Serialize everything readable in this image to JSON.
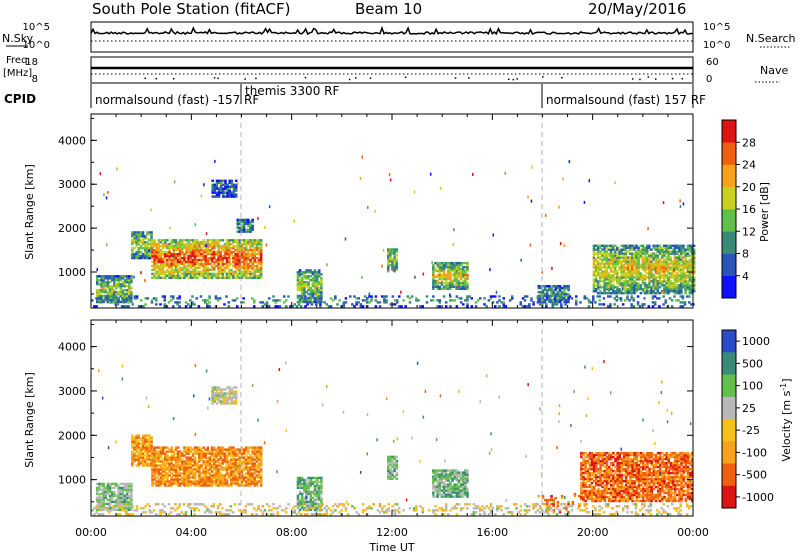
{
  "header": {
    "station": "South Pole Station (fitACF)",
    "beam": "Beam 10",
    "date": "20/May/2016"
  },
  "strip_nsky": {
    "left_label": "N.Sky",
    "right_label": "N.Search",
    "left_ticks": [
      "10^5",
      "10^0"
    ],
    "right_ticks": [
      "10^5",
      "10^0"
    ]
  },
  "strip_freq": {
    "left_label_line1": "Freq.",
    "left_label_line2": "[MHz]",
    "right_label": "Nave",
    "left_ticks": [
      "18",
      "8"
    ],
    "right_ticks": [
      "60",
      "0"
    ]
  },
  "cpid": {
    "label": "CPID",
    "segments": [
      {
        "text": "normalsound (fast) -157 RF",
        "start_h": 0
      },
      {
        "text": "themis 3300 RF",
        "start_h": 6
      },
      {
        "text": "normalsound (fast) 157 RF",
        "start_h": 18
      }
    ]
  },
  "chart_data": [
    {
      "type": "heatmap",
      "name": "Power",
      "xlabel": "",
      "ylabel": "Slant Range [km]",
      "xlim": [
        0,
        24
      ],
      "ylim": [
        180,
        4600
      ],
      "yticks": [
        1000,
        2000,
        3000,
        4000
      ],
      "colorbar_label": "Power [dB]",
      "colorbar_ticks": [
        "4",
        "8",
        "12",
        "16",
        "20",
        "24",
        "28"
      ],
      "colorbar_range": [
        0,
        32
      ],
      "colorbar_colors": [
        "#1010ff",
        "#2a55b8",
        "#3a8a7a",
        "#62c04a",
        "#c8d21e",
        "#f6a21a",
        "#f06010",
        "#dc1414"
      ],
      "echo_regions": [
        {
          "t0": 0.2,
          "t1": 1.6,
          "r0": 300,
          "r1": 900,
          "level": 0.45
        },
        {
          "t0": 1.6,
          "t1": 2.4,
          "r0": 1300,
          "r1": 1900,
          "level": 0.5
        },
        {
          "t0": 2.4,
          "t1": 6.8,
          "r0": 850,
          "r1": 1750,
          "level": 0.75
        },
        {
          "t0": 4.8,
          "t1": 5.8,
          "r0": 2700,
          "r1": 3100,
          "level": 0.2
        },
        {
          "t0": 5.8,
          "t1": 6.4,
          "r0": 1900,
          "r1": 2200,
          "level": 0.3
        },
        {
          "t0": 8.2,
          "t1": 9.2,
          "r0": 300,
          "r1": 1050,
          "level": 0.45
        },
        {
          "t0": 11.8,
          "t1": 12.2,
          "r0": 1000,
          "r1": 1500,
          "level": 0.45
        },
        {
          "t0": 13.6,
          "t1": 15.0,
          "r0": 600,
          "r1": 1200,
          "level": 0.55
        },
        {
          "t0": 17.8,
          "t1": 19.0,
          "r0": 300,
          "r1": 700,
          "level": 0.3
        },
        {
          "t0": 20.0,
          "t1": 24.0,
          "r0": 500,
          "r1": 1600,
          "level": 0.55
        },
        {
          "t0": 0.0,
          "t1": 24.0,
          "r0": 200,
          "r1": 450,
          "level": 0.3
        }
      ]
    },
    {
      "type": "heatmap",
      "name": "Velocity",
      "xlabel": "Time UT",
      "ylabel": "Slant Range [km]",
      "xlim": [
        0,
        24
      ],
      "ylim": [
        180,
        4600
      ],
      "yticks": [
        1000,
        2000,
        3000,
        4000
      ],
      "xticks": [
        "00:00",
        "04:00",
        "08:00",
        "12:00",
        "16:00",
        "20:00",
        "00:00"
      ],
      "colorbar_label": "Velocity [m s^-1]",
      "colorbar_ticks": [
        "1000",
        "500",
        "100",
        "25",
        "-25",
        "-100",
        "-500",
        "-1000"
      ],
      "colorbar_colors": [
        "#2a4cc8",
        "#3a8a7a",
        "#62c04a",
        "#b8b8b8",
        "#f6c21a",
        "#f6a21a",
        "#f06010",
        "#dc1414"
      ],
      "echo_regions": [
        {
          "t0": 0.2,
          "t1": 1.6,
          "r0": 300,
          "r1": 900,
          "level": 0.35
        },
        {
          "t0": 1.6,
          "t1": 2.4,
          "r0": 1300,
          "r1": 2000,
          "level": 0.7
        },
        {
          "t0": 2.4,
          "t1": 6.8,
          "r0": 850,
          "r1": 1750,
          "level": 0.72
        },
        {
          "t0": 4.8,
          "t1": 5.8,
          "r0": 2700,
          "r1": 3100,
          "level": 0.45
        },
        {
          "t0": 8.2,
          "t1": 9.2,
          "r0": 300,
          "r1": 1050,
          "level": 0.3
        },
        {
          "t0": 11.8,
          "t1": 12.2,
          "r0": 1000,
          "r1": 1500,
          "level": 0.35
        },
        {
          "t0": 13.6,
          "t1": 15.0,
          "r0": 600,
          "r1": 1200,
          "level": 0.3
        },
        {
          "t0": 17.8,
          "t1": 19.5,
          "r0": 250,
          "r1": 700,
          "level": 0.75
        },
        {
          "t0": 19.5,
          "t1": 24.0,
          "r0": 500,
          "r1": 1600,
          "level": 0.8
        },
        {
          "t0": 0.0,
          "t1": 24.0,
          "r0": 200,
          "r1": 450,
          "level": 0.5
        }
      ]
    }
  ]
}
